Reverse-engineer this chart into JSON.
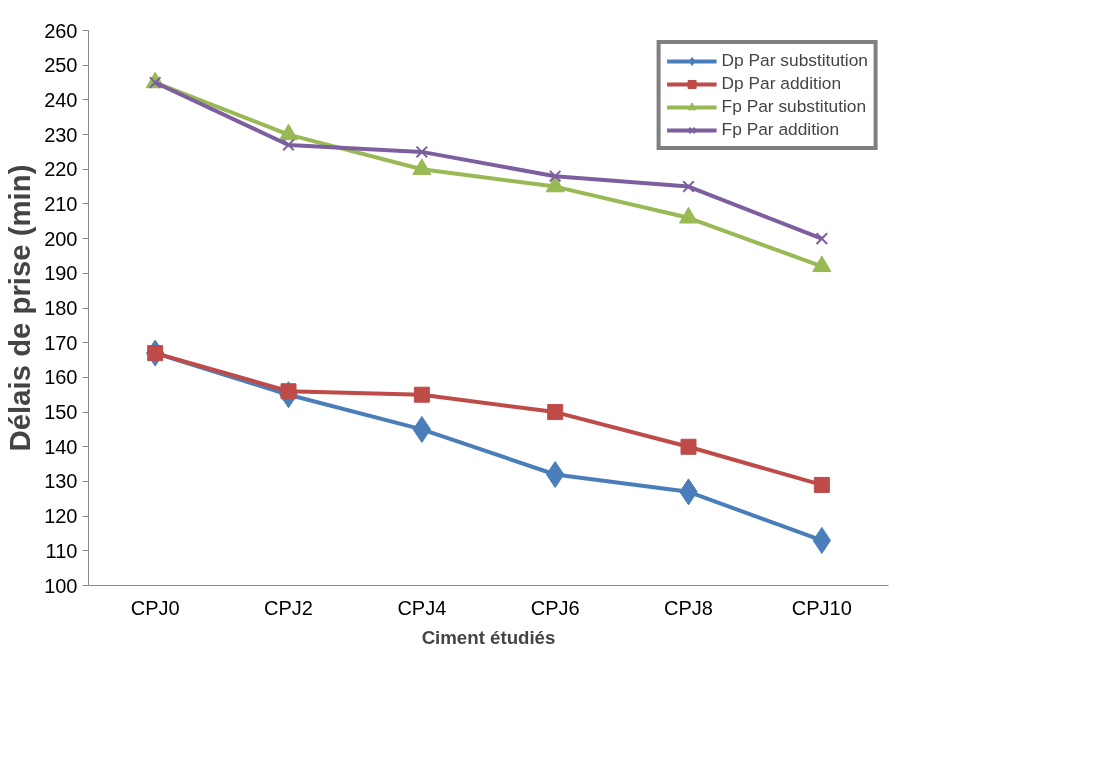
{
  "chart_data": {
    "type": "line",
    "xlabel": "Ciment étudiés",
    "ylabel": "Délais de prise (min)",
    "categories": [
      "CPJ0",
      "CPJ2",
      "CPJ4",
      "CPJ6",
      "CPJ8",
      "CPJ10"
    ],
    "series": [
      {
        "name": "Dp Par substitution",
        "color": "#4a7ebb",
        "marker": "diamond",
        "values": [
          167,
          155,
          145,
          132,
          127,
          113
        ]
      },
      {
        "name": "Dp Par addition",
        "color": "#be4b48",
        "marker": "square",
        "values": [
          167,
          156,
          155,
          150,
          140,
          129
        ]
      },
      {
        "name": "Fp Par substitution",
        "color": "#98b954",
        "marker": "triangle",
        "values": [
          245,
          230,
          220,
          215,
          206,
          192
        ]
      },
      {
        "name": "Fp Par addition",
        "color": "#7d5fa0",
        "marker": "cross",
        "values": [
          245,
          227,
          225,
          218,
          215,
          200
        ]
      }
    ],
    "ylim": [
      100,
      260
    ],
    "yticks": [
      100,
      110,
      120,
      130,
      140,
      150,
      160,
      170,
      180,
      190,
      200,
      210,
      220,
      230,
      240,
      250,
      260
    ],
    "grid": false,
    "legend": "top right",
    "line_style": "solid"
  }
}
